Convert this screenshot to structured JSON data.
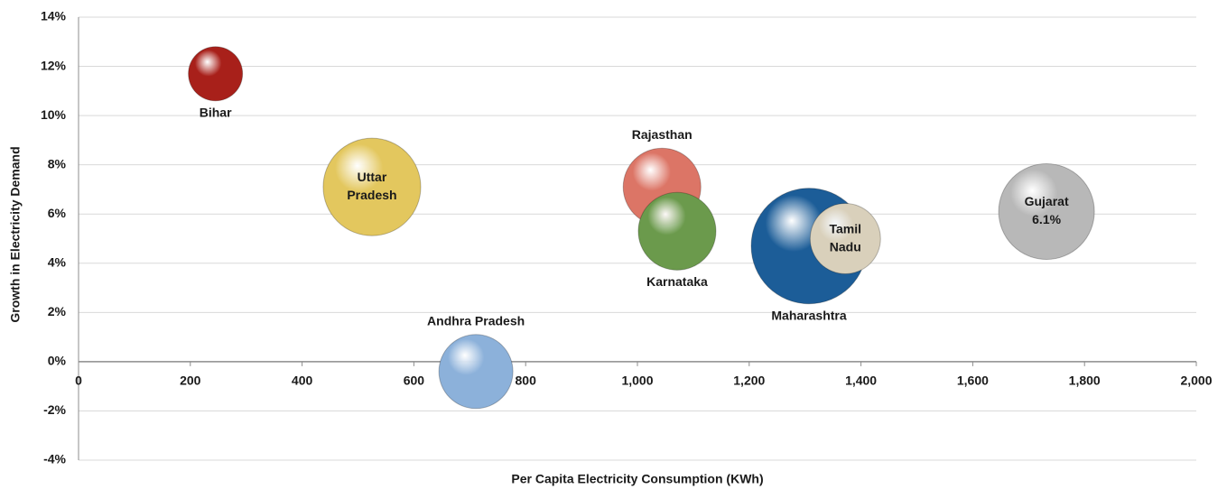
{
  "chart_data": {
    "type": "bubble",
    "x_label": "Per Capita Electricity Consumption  (KWh)",
    "y_label": "Growth in Electricity Demand",
    "labels": [
      "Bihar",
      "Uttar Pradesh",
      "Rajasthan",
      "Karnataka",
      "Maharashtra",
      "Tamil Nadu",
      "Gujarat",
      "Andhra Pradesh"
    ],
    "x": [
      245,
      525,
      1044,
      1071,
      1307,
      1372,
      1732,
      711
    ],
    "values": [
      11.7,
      7.1,
      7.1,
      5.3,
      4.7,
      5.0,
      6.1,
      -0.4
    ],
    "value_labels": [
      null,
      null,
      null,
      null,
      null,
      null,
      "6.1%",
      null
    ],
    "sizes": [
      90,
      292,
      185,
      185,
      410,
      152,
      281,
      168
    ],
    "colors": [
      "#a8201a",
      "#e3c75e",
      "#dc7566",
      "#6b9a4c",
      "#1c5d98",
      "#d9d0bb",
      "#b8b8b8",
      "#8cb1da"
    ],
    "xlim": [
      0,
      2000
    ],
    "xticks": [
      0,
      200,
      400,
      600,
      800,
      {
        "value": 1000,
        "label": "1,000"
      },
      {
        "value": 1200,
        "label": "1,200"
      },
      {
        "value": 1400,
        "label": "1,400"
      },
      {
        "value": 1600,
        "label": "1,600"
      },
      {
        "value": 1800,
        "label": "1,800"
      },
      {
        "value": 2000,
        "label": "2,000"
      }
    ],
    "ylim": [
      -4,
      14
    ],
    "yticks": [
      {
        "value": -4,
        "label": "-4%"
      },
      {
        "value": -2,
        "label": "-2%"
      },
      {
        "value": 0,
        "label": "0%"
      },
      {
        "value": 2,
        "label": "2%"
      },
      {
        "value": 4,
        "label": "4%"
      },
      {
        "value": 6,
        "label": "6%"
      },
      {
        "value": 8,
        "label": "8%"
      },
      {
        "value": 10,
        "label": "10%"
      },
      {
        "value": 12,
        "label": "12%"
      },
      {
        "value": 14,
        "label": "14%"
      }
    ],
    "grid": true
  }
}
